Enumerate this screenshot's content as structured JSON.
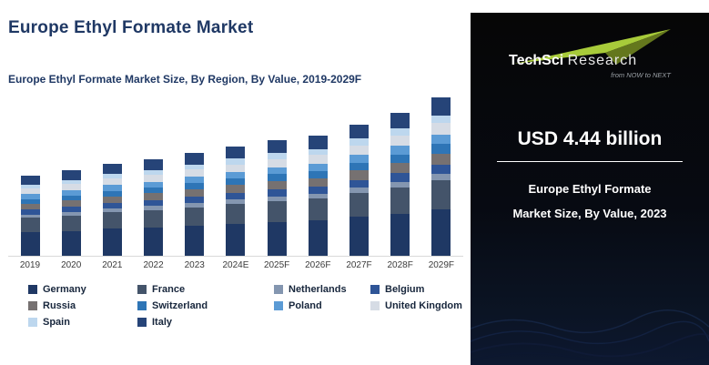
{
  "header": {
    "title": "Europe Ethyl Formate Market",
    "subtitle": "Europe Ethyl Formate Market Size, By Region, By Value, 2019-2029F"
  },
  "chart_data": {
    "type": "bar",
    "stacked": true,
    "title": "Europe Ethyl Formate Market Size, By Region, By Value, 2019-2029F",
    "units": "USD Billion",
    "grid": false,
    "legend_position": "bottom",
    "ylim": [
      0,
      7
    ],
    "categories": [
      "2019",
      "2020",
      "2021",
      "2022",
      "2023",
      "2024E",
      "2025F",
      "2026F",
      "2027F",
      "2028F",
      "2029F"
    ],
    "series": [
      {
        "name": "Germany",
        "color": "#1F3864",
        "values": [
          1.04,
          1.1,
          1.19,
          1.25,
          1.32,
          1.41,
          1.49,
          1.55,
          1.7,
          1.85,
          2.04
        ]
      },
      {
        "name": "France",
        "color": "#44546A",
        "values": [
          0.62,
          0.66,
          0.71,
          0.75,
          0.8,
          0.85,
          0.89,
          0.93,
          1.02,
          1.11,
          1.22
        ]
      },
      {
        "name": "Netherlands",
        "color": "#8496B0",
        "values": [
          0.14,
          0.15,
          0.16,
          0.17,
          0.18,
          0.19,
          0.2,
          0.21,
          0.23,
          0.25,
          0.27
        ]
      },
      {
        "name": "Belgium",
        "color": "#2F5597",
        "values": [
          0.21,
          0.22,
          0.24,
          0.25,
          0.27,
          0.28,
          0.3,
          0.31,
          0.34,
          0.37,
          0.41
        ]
      },
      {
        "name": "Russia",
        "color": "#767171",
        "values": [
          0.24,
          0.26,
          0.28,
          0.29,
          0.31,
          0.33,
          0.35,
          0.36,
          0.4,
          0.43,
          0.48
        ]
      },
      {
        "name": "Switzerland",
        "color": "#2E75B6",
        "values": [
          0.21,
          0.22,
          0.24,
          0.25,
          0.27,
          0.28,
          0.3,
          0.31,
          0.34,
          0.37,
          0.41
        ]
      },
      {
        "name": "Poland",
        "color": "#5B9BD5",
        "values": [
          0.21,
          0.22,
          0.24,
          0.25,
          0.27,
          0.28,
          0.3,
          0.31,
          0.34,
          0.37,
          0.41
        ]
      },
      {
        "name": "United Kingdom",
        "color": "#D6DCE5",
        "values": [
          0.24,
          0.26,
          0.28,
          0.29,
          0.31,
          0.33,
          0.35,
          0.36,
          0.4,
          0.43,
          0.48
        ]
      },
      {
        "name": "Spain",
        "color": "#BDD7EE",
        "values": [
          0.17,
          0.18,
          0.2,
          0.21,
          0.22,
          0.24,
          0.25,
          0.26,
          0.28,
          0.31,
          0.34
        ]
      },
      {
        "name": "Italy",
        "color": "#264478",
        "values": [
          0.38,
          0.4,
          0.43,
          0.46,
          0.49,
          0.52,
          0.54,
          0.57,
          0.62,
          0.68,
          0.75
        ]
      }
    ],
    "totals_note_2023": "USD 4.44 billion"
  },
  "side_panel": {
    "logo_text_1": "TechSci",
    "logo_text_2": "Research",
    "logo_tagline": "from NOW to NEXT",
    "headline": "USD 4.44 billion",
    "caption_line1": "Europe Ethyl Formate",
    "caption_line2": "Market Size, By Value, 2023",
    "accent_green": "#A8CB3A",
    "panel_bg": "#070a12"
  }
}
